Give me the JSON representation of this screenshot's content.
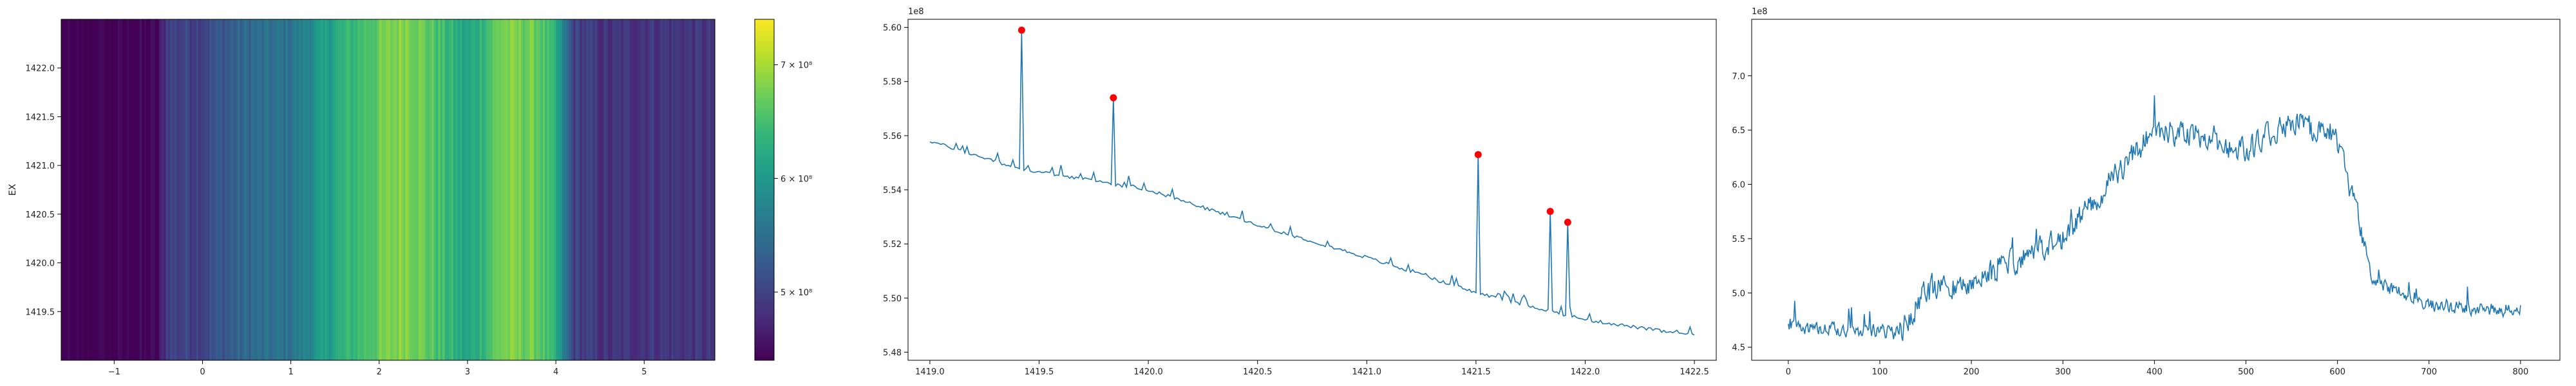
{
  "chart_data": [
    {
      "type": "heatmap",
      "title": "",
      "xlabel": "",
      "ylabel": "EX",
      "xlim": [
        -1.6,
        5.8
      ],
      "ylim": [
        1419.0,
        1422.5
      ],
      "xticks": [
        -1,
        0,
        1,
        2,
        3,
        4,
        5
      ],
      "xtick_labels": [
        "−1",
        "0",
        "1",
        "2",
        "3",
        "4",
        "5"
      ],
      "yticks": [
        1419.5,
        1420.0,
        1420.5,
        1421.0,
        1421.5,
        1422.0
      ],
      "ytick_labels": [
        "1419.5",
        "1420.0",
        "1420.5",
        "1421.0",
        "1421.5",
        "1422.0"
      ],
      "colormap": "viridis",
      "column_profile": [
        [
          -1.6,
          430000000.0
        ],
        [
          -0.5,
          440000000.0
        ],
        [
          -0.4,
          500000000.0
        ],
        [
          0.0,
          505000000.0
        ],
        [
          0.5,
          540000000.0
        ],
        [
          1.0,
          555000000.0
        ],
        [
          1.5,
          620000000.0
        ],
        [
          1.9,
          660000000.0
        ],
        [
          2.3,
          690000000.0
        ],
        [
          2.6,
          660000000.0
        ],
        [
          3.0,
          610000000.0
        ],
        [
          3.4,
          680000000.0
        ],
        [
          3.8,
          670000000.0
        ],
        [
          4.0,
          620000000.0
        ],
        [
          4.2,
          500000000.0
        ],
        [
          4.6,
          480000000.0
        ],
        [
          5.0,
          490000000.0
        ],
        [
          5.8,
          485000000.0
        ]
      ],
      "colorbar": {
        "min": 440000000.0,
        "max": 740000000.0,
        "ticks": [
          500000000.0,
          600000000.0,
          700000000.0
        ],
        "tick_labels": [
          "5 × 10⁸",
          "6 × 10⁸",
          "7 × 10⁸"
        ]
      }
    },
    {
      "type": "line",
      "title": "",
      "xlabel": "",
      "ylabel": "",
      "xlim": [
        1418.9,
        1422.6
      ],
      "ylim": [
        547700000.0,
        560300000.0
      ],
      "offset_label": "1e8",
      "xticks": [
        1419.0,
        1419.5,
        1420.0,
        1420.5,
        1421.0,
        1421.5,
        1422.0,
        1422.5
      ],
      "xtick_labels": [
        "1419.0",
        "1419.5",
        "1420.0",
        "1420.5",
        "1421.0",
        "1421.5",
        "1422.0",
        "1422.5"
      ],
      "yticks": [
        548000000.0,
        550000000.0,
        552000000.0,
        554000000.0,
        556000000.0,
        558000000.0,
        560000000.0
      ],
      "ytick_labels": [
        "5.48",
        "5.50",
        "5.52",
        "5.54",
        "5.56",
        "5.58",
        "5.60"
      ],
      "series": [
        {
          "color": "#1f77b4",
          "x_start": 1419.0,
          "x_step": 0.01,
          "count": 351,
          "trend": [
            [
              1419.0,
              555800000.0
            ],
            [
              1419.4,
              554800000.0
            ],
            [
              1420.0,
              554000000.0
            ],
            [
              1420.5,
              552700000.0
            ],
            [
              1421.0,
              551500000.0
            ],
            [
              1421.5,
              550200000.0
            ],
            [
              1422.0,
              549200000.0
            ],
            [
              1422.5,
              548600000.0
            ]
          ]
        }
      ],
      "peaks": [
        {
          "x": 1419.42,
          "y": 559900000.0
        },
        {
          "x": 1419.84,
          "y": 557400000.0
        },
        {
          "x": 1421.51,
          "y": 555300000.0
        },
        {
          "x": 1421.84,
          "y": 553200000.0
        },
        {
          "x": 1421.92,
          "y": 552800000.0
        }
      ],
      "peak_color": "#ff0000"
    },
    {
      "type": "line",
      "title": "",
      "xlabel": "",
      "ylabel": "",
      "xlim": [
        -40,
        843
      ],
      "ylim": [
        438000000.0,
        752000000.0
      ],
      "offset_label": "1e8",
      "xticks": [
        0,
        100,
        200,
        300,
        400,
        500,
        600,
        700,
        800
      ],
      "xtick_labels": [
        "0",
        "100",
        "200",
        "300",
        "400",
        "500",
        "600",
        "700",
        "800"
      ],
      "yticks": [
        450000000.0,
        500000000.0,
        550000000.0,
        600000000.0,
        650000000.0,
        700000000.0
      ],
      "ytick_labels": [
        "4.5",
        "5.0",
        "5.5",
        "6.0",
        "6.5",
        "7.0"
      ],
      "series": [
        {
          "color": "#1f77b4",
          "x_start": 0,
          "x_step": 1,
          "count": 801,
          "trend": [
            [
              0,
              468000000.0
            ],
            [
              100,
              465000000.0
            ],
            [
              120,
              462000000.0
            ],
            [
              150,
              500000000.0
            ],
            [
              200,
              510000000.0
            ],
            [
              250,
              530000000.0
            ],
            [
              300,
              550000000.0
            ],
            [
              350,
              600000000.0
            ],
            [
              400,
              650000000.0
            ],
            [
              450,
              645000000.0
            ],
            [
              500,
              630000000.0
            ],
            [
              550,
              660000000.0
            ],
            [
              600,
              640000000.0
            ],
            [
              620,
              580000000.0
            ],
            [
              640,
              510000000.0
            ],
            [
              700,
              490000000.0
            ],
            [
              750,
              485000000.0
            ],
            [
              800,
              485000000.0
            ]
          ]
        }
      ]
    }
  ]
}
